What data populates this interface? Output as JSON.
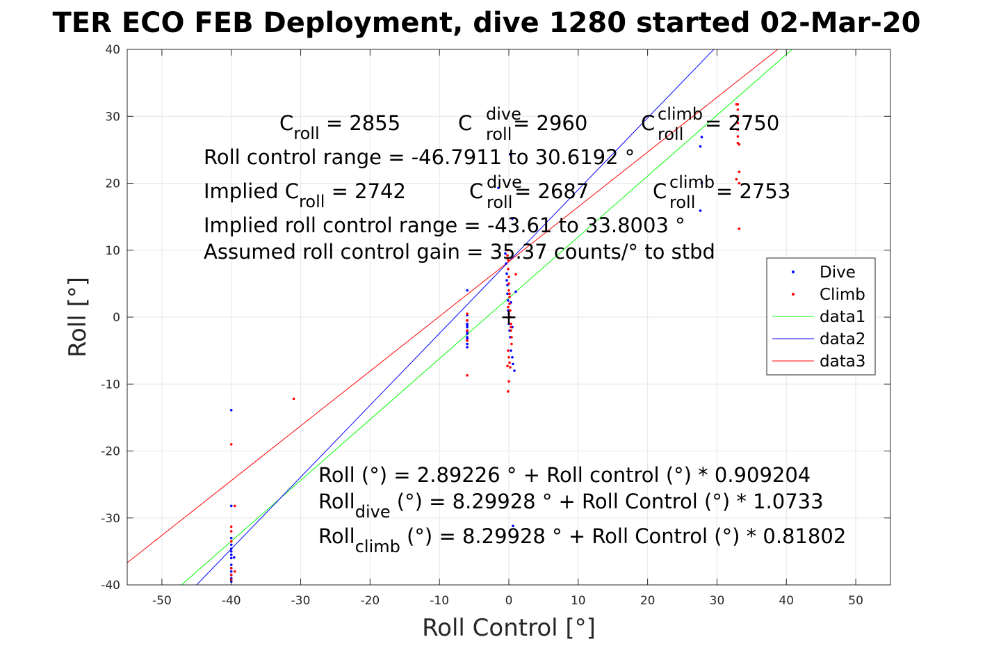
{
  "chart_data": {
    "type": "scatter",
    "title": "TER ECO FEB Deployment, dive 1280 started 02-Mar-20",
    "xlabel": "Roll Control [°]",
    "ylabel": "Roll [°]",
    "xlim": [
      -55,
      55
    ],
    "ylim": [
      -40,
      40
    ],
    "xticks": [
      -50,
      -40,
      -30,
      -20,
      -10,
      0,
      10,
      20,
      30,
      40,
      50
    ],
    "yticks": [
      -40,
      -30,
      -20,
      -10,
      0,
      10,
      20,
      30,
      40
    ],
    "grid": true,
    "legend_position": "right",
    "legend": [
      "Dive",
      "Climb",
      "data1",
      "data2",
      "data3"
    ],
    "series": [
      {
        "name": "Dive",
        "kind": "points",
        "color": "#0000ff",
        "x": [
          -40,
          -40,
          -40,
          -40,
          -40,
          -40,
          -40,
          -40,
          -40,
          -40,
          -40,
          -40,
          -40,
          -40,
          -39.6,
          -6,
          -6,
          -6,
          -6,
          -6,
          -6,
          -6,
          -6,
          -6,
          -6,
          -6,
          -6,
          -6,
          -6,
          -0.5,
          -0.4,
          -0.3,
          -0.3,
          -0.2,
          -0.2,
          -0.1,
          -0.1,
          0,
          0,
          0.1,
          0.2,
          0.3,
          0.5,
          0.6,
          0.8,
          1.0,
          0.3,
          0.5,
          -1.5,
          0.2,
          0.5,
          27.6,
          27.8,
          27.8,
          27.6
        ],
        "y": [
          -13.9,
          -28.2,
          -33,
          -34,
          -34.6,
          -35,
          -35.5,
          -36,
          -37,
          -37.5,
          -38,
          -38.5,
          -39,
          -39.5,
          -35.9,
          4,
          0.3,
          -0.5,
          -1,
          -1.5,
          -2,
          -2.5,
          -3,
          -3.5,
          -4,
          -4.5,
          -1.2,
          -2.2,
          -3.2,
          9.5,
          8,
          6.5,
          5.5,
          4.8,
          3.5,
          2.5,
          1,
          0.5,
          -1,
          -2,
          -3,
          -5,
          -6,
          -7,
          -8,
          3.8,
          2.2,
          -1.5,
          19.3,
          24.3,
          14.7,
          25.5,
          26.9,
          20.1,
          15.9
        ],
        "extra_points": [
          [
            0.6,
            -31.2
          ]
        ]
      },
      {
        "name": "Climb",
        "kind": "points",
        "color": "#ff0000",
        "x": [
          -40,
          -40,
          -40,
          -40,
          -40,
          -40,
          -40,
          -39.5,
          -39.5,
          -31,
          -6,
          -6,
          -6,
          -6,
          -6,
          -0.2,
          -0.2,
          -0.1,
          -0.1,
          0,
          0,
          0,
          0.1,
          0.1,
          0.2,
          0.2,
          0.3,
          0.3,
          0.4,
          0.4,
          -0.1,
          0,
          0.1,
          -0.2,
          0.2,
          0,
          -0.1,
          0.1,
          1.0,
          0.3,
          -0.1,
          32.8,
          33,
          33,
          33,
          33,
          33,
          33,
          33,
          33.2,
          33.2,
          32.8,
          33.2,
          33.2
        ],
        "y": [
          -19,
          -31.3,
          -32,
          -33.5,
          -37.5,
          -38.5,
          -39.2,
          -28.2,
          -38,
          -12.2,
          0.5,
          -0.5,
          -2,
          -3.5,
          -8.7,
          10,
          9.2,
          8.5,
          7.2,
          6,
          5,
          4,
          3,
          2,
          1,
          0,
          -1,
          -2,
          -3,
          -4,
          -5,
          -6,
          -6.8,
          -7.3,
          -7.5,
          -9.6,
          -11.1,
          3.5,
          6.4,
          -1.5,
          1.5,
          31.8,
          31.8,
          31,
          30,
          29,
          28,
          27,
          26,
          25.8,
          21.7,
          20.6,
          20,
          13.2
        ]
      },
      {
        "name": "data1",
        "kind": "line",
        "color": "#00ff00",
        "intercept": 2.89226,
        "slope": 0.909204
      },
      {
        "name": "data2",
        "kind": "line",
        "color": "#0000ff",
        "intercept": 8.29928,
        "slope": 1.0733
      },
      {
        "name": "data3",
        "kind": "line",
        "color": "#ff0000",
        "intercept": 8.29928,
        "slope": 0.81802
      }
    ],
    "center_marker": {
      "x": 0,
      "y": 0,
      "symbol": "+"
    },
    "annotations": {
      "c_roll": "C",
      "c_roll_sub": "roll",
      "c_roll_value": " = 2855",
      "c_dive": "C",
      "c_dive_sub": "roll",
      "c_dive_sup": "dive",
      "c_dive_value": " = 2960",
      "c_climb": "C",
      "c_climb_sub": "roll",
      "c_climb_sup": "climb",
      "c_climb_value": " = 2750",
      "range_line": "Roll control range = -46.7911 to 30.6192 °",
      "implied_prefix": "Implied C",
      "implied_sub": "roll",
      "implied_value": " = 2742",
      "implied_dive": "C",
      "implied_dive_sub": "roll",
      "implied_dive_sup": "dive",
      "implied_dive_value": " = 2687",
      "implied_climb": "C",
      "implied_climb_sub": "roll",
      "implied_climb_sup": "climb",
      "implied_climb_value": " = 2753",
      "implied_range_line": "Implied roll control range = -43.61 to 33.8003 °",
      "gain_line": "Assumed roll control gain = 35.37 counts/° to stbd",
      "fit_line": "Roll (°) = 2.89226 ° + Roll control (°) * 0.909204",
      "fit_dive_prefix": "Roll",
      "fit_dive_sub": "dive",
      "fit_dive_rest": " (°) = 8.29928 ° + Roll Control (°) * 1.0733",
      "fit_climb_prefix": "Roll",
      "fit_climb_sub": "climb",
      "fit_climb_rest": " (°) = 8.29928 ° + Roll Control (°) * 0.81802"
    }
  }
}
